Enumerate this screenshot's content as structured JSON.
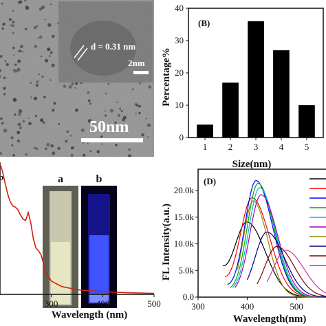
{
  "chart_data": [
    {
      "panel": "A",
      "type": "image",
      "scale_bar": "50nm",
      "inset_scale_bar": "2nm",
      "annotation": "d = 0.31 nm"
    },
    {
      "panel": "B",
      "type": "bar",
      "label": "(B)",
      "categories": [
        "1",
        "2",
        "3",
        "4",
        "5"
      ],
      "values": [
        4,
        17,
        36,
        27,
        10
      ],
      "xlabel": "Size(nm)",
      "ylabel": "Percentage%",
      "ylim": [
        0,
        40
      ],
      "yticks": [
        "0",
        "10",
        "20",
        "30",
        "40"
      ],
      "bar_color": "#000000"
    },
    {
      "panel": "C",
      "type": "line",
      "label": "b",
      "xlabel": "Wavelength (nm)",
      "xticks": [
        "300",
        "400",
        "500"
      ],
      "xlim": [
        200,
        500
      ],
      "photo_labels": [
        "a",
        "b"
      ],
      "line_color": "#d02010",
      "series": [
        {
          "x": [
            200,
            205,
            210,
            215,
            220,
            225,
            230,
            235,
            240,
            245,
            250,
            255,
            260,
            265,
            270,
            275,
            280,
            285,
            290,
            300,
            320,
            350,
            400,
            450,
            500
          ],
          "y": [
            0.99,
            0.93,
            0.84,
            0.76,
            0.7,
            0.67,
            0.66,
            0.64,
            0.6,
            0.57,
            0.56,
            0.62,
            0.54,
            0.42,
            0.35,
            0.33,
            0.3,
            0.23,
            0.16,
            0.1,
            0.06,
            0.035,
            0.02,
            0.012,
            0.008
          ]
        }
      ]
    },
    {
      "panel": "D",
      "type": "line",
      "label": "(D)",
      "xlabel": "Wavelength(nm)",
      "ylabel": "FL Intensity(a.u.)",
      "xlim": [
        300,
        560
      ],
      "ylim": [
        0,
        24000
      ],
      "xticks": [
        "300",
        "400",
        "500"
      ],
      "yticks": [
        "0.0",
        "5.0k",
        "10.0k",
        "15.0k",
        "20.0k"
      ],
      "series": [
        {
          "color": "#000000",
          "peak": 400,
          "amp": 13800,
          "start": 350,
          "base": 4000,
          "sigma": 42
        },
        {
          "color": "#ff0000",
          "peak": 410,
          "amp": 18500,
          "start": 355,
          "base": 2500,
          "sigma": 40
        },
        {
          "color": "#0000ff",
          "peak": 418,
          "amp": 21800,
          "start": 360,
          "base": 1500,
          "sigma": 38
        },
        {
          "color": "#00aa00",
          "peak": 422,
          "amp": 21300,
          "start": 365,
          "base": 1000,
          "sigma": 37
        },
        {
          "color": "#00bcd4",
          "peak": 425,
          "amp": 20500,
          "start": 370,
          "base": 800,
          "sigma": 37
        },
        {
          "color": "#aa00aa",
          "peak": 428,
          "amp": 19200,
          "start": 375,
          "base": 500,
          "sigma": 38
        },
        {
          "color": "#8a8a00",
          "peak": 412,
          "amp": 18000,
          "start": 380,
          "base": 300,
          "sigma": 33
        },
        {
          "color": "#000080",
          "peak": 440,
          "amp": 12200,
          "start": 400,
          "base": 200,
          "sigma": 40
        },
        {
          "color": "#800000",
          "peak": 460,
          "amp": 9500,
          "start": 420,
          "base": 100,
          "sigma": 40
        },
        {
          "color": "#c0399f",
          "peak": 478,
          "amp": 8800,
          "start": 440,
          "base": 50,
          "sigma": 42
        }
      ]
    }
  ]
}
